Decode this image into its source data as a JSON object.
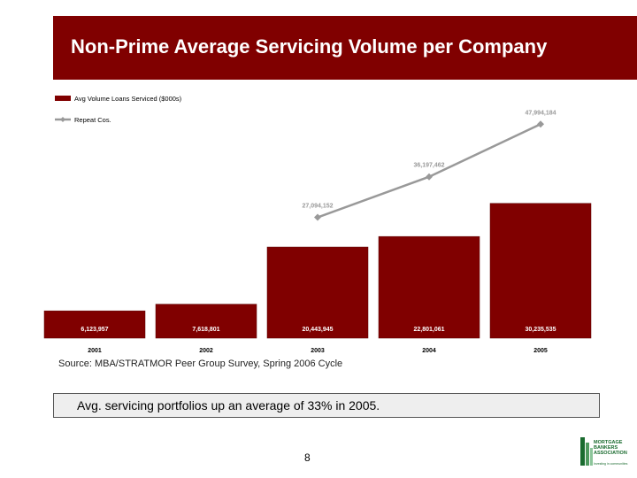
{
  "header": {
    "title": "Non-Prime Average Servicing Volume per Company"
  },
  "chart_data": {
    "type": "bar",
    "title": "Non-Prime Average Servicing Volume per Company",
    "categories": [
      "2001",
      "2002",
      "2003",
      "2004",
      "2005"
    ],
    "series": [
      {
        "name": "Avg Volume Loans Serviced ($000s)",
        "type": "bar",
        "color": "#800000",
        "values": [
          6123957,
          7618801,
          20443945,
          22801061,
          30235535
        ],
        "labels": [
          "6,123,957",
          "7,618,801",
          "20,443,945",
          "22,801,061",
          "30,235,535"
        ]
      },
      {
        "name": "Repeat Cos.",
        "type": "line",
        "color": "#999999",
        "values": [
          null,
          null,
          27094152,
          36197462,
          47994184
        ],
        "labels": [
          "",
          "",
          "27,094,152",
          "36,197,462",
          "47,994,184"
        ]
      }
    ],
    "xlabel": "",
    "ylabel": "",
    "ylim": [
      0,
      55000000
    ],
    "legend": "top-left",
    "grid": false
  },
  "source": "Source:  MBA/STRATMOR Peer Group Survey, Spring 2006 Cycle",
  "callout": "Avg. servicing portfolios up an average of 33% in 2005.",
  "page_number": "8",
  "logo": {
    "name": "MORTGAGE BANKERS ASSOCIATION",
    "tagline": "Investing in communities"
  }
}
